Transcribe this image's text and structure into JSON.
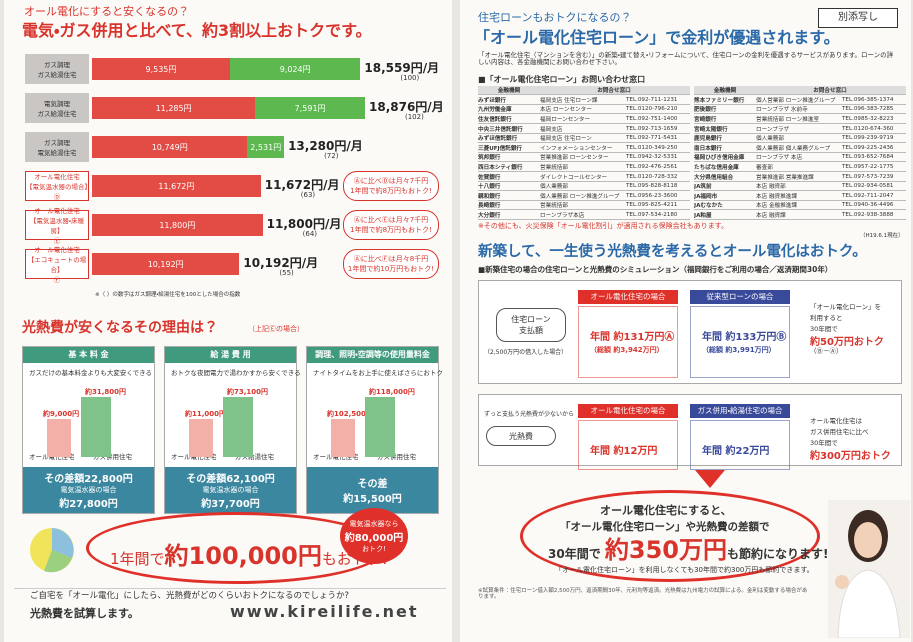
{
  "left": {
    "heading": "オール電化にすると安くなるの？",
    "title": "電気・ガス併用と比べて、約3割以上おトクです。",
    "bars": [
      {
        "label": [
          "ガス調理",
          "ガス給湯住宅"
        ],
        "electric": "9,535円",
        "gas": "9,024円",
        "total": "18,559円/月",
        "index": "(100)"
      },
      {
        "label": [
          "電気調理",
          "ガス給湯住宅"
        ],
        "electric": "11,285円",
        "gas": "7,591円",
        "total": "18,876円/月",
        "index": "(102)"
      },
      {
        "label": [
          "ガス調理",
          "電気給湯住宅"
        ],
        "electric": "10,749円",
        "gas": "2,531円",
        "total": "13,280円/月",
        "index": "(72)"
      },
      {
        "label": [
          "オール電化住宅",
          "【電気温水器の場合】",
          "Ⓓ"
        ],
        "electric": "11,672円",
        "total": "11,672円/月",
        "index": "(63)",
        "callout": [
          "Ⓐに比べⒹは月々7千円",
          "1年間で約8万円もおトク!"
        ]
      },
      {
        "label": [
          "オール電化住宅",
          "【電気温水器・床暖房】",
          "Ⓔ"
        ],
        "electric": "11,800円",
        "total": "11,800円/月",
        "index": "(64)",
        "callout": [
          "Ⓐに比べⒺは月々7千円",
          "1年間で約8万円もおトク!"
        ]
      },
      {
        "label": [
          "オール電化住宅",
          "【エコキュートの場合】",
          "Ⓕ"
        ],
        "electric": "10,192円",
        "total": "10,192円/月",
        "index": "(55)",
        "callout": [
          "Ⓐに比べⒻは月々8千円",
          "1年間で約10万円もおトク!"
        ]
      }
    ],
    "footnote": "※（ ）の数字はガス調理・給湯住宅を100とした場合の指数",
    "reason_title": "光熱費が安くなるその理由は？",
    "reason_note": "（上記Ⓔの場合）",
    "columns": [
      {
        "header": "基 本 料 金",
        "texts": [
          "ガスだけの基本料金よりも大変安くできる",
          "約31,800円",
          "約9,000円",
          "オール電化住宅",
          "ガス併用住宅"
        ],
        "diff": [
          "その差額22,800円",
          "電気温水器の場合",
          "約27,800円"
        ]
      },
      {
        "header": "給 湯 費 用",
        "texts": [
          "おトクな夜間電力で湯わかすから安くできる",
          "約73,100円",
          "約11,000円",
          "オール電化住宅",
          "ガス給湯住宅"
        ],
        "diff": [
          "その差額62,100円",
          "電気温水器の場合",
          "約37,700円"
        ]
      },
      {
        "header": "調理、照明・空調等の使用量料金",
        "texts": [
          "ナイトタイムをお上手に使えばさらにおトク",
          "約118,000円",
          "約102,500円",
          "オール電化住宅",
          "ガス併用住宅"
        ],
        "diff": [
          "その差",
          "約15,500円"
        ]
      }
    ],
    "result": [
      "1年間で",
      "約100,000円",
      "もおトク!"
    ],
    "side_badge": [
      "電気温水器なら",
      "約80,000円",
      "おトク!"
    ],
    "footer": [
      "ご自宅を「オール電化」にしたら、光熱費がどのくらいおトクになるのでしょうか?",
      "光熱費を試算します。",
      "www.kireilife.net"
    ]
  },
  "right": {
    "stamp": "別添写し",
    "heading": "住宅ローンもおトクになるの？",
    "title": "「オール電化住宅ローン」で金利が優遇されます。",
    "paragraph": "「オール電化住宅（マンションを含む）」の新築・建て替え・リフォームについて、住宅ローンの金利を優遇するサービスがあります。ローンの詳しい内容は、各金融機関にお問い合わせ下さい。",
    "table_title": "■「オール電化住宅ローン」お問い合わせ窓口",
    "table": {
      "header": [
        "金融機関",
        "お問合せ窓口"
      ],
      "left": [
        [
          "みずほ銀行",
          "福岡支店 住宅ローン課",
          "TEL.092-711-1231"
        ],
        [
          "九州労働金庫",
          "本店 ローンセンター",
          "TEL.0120-796-210"
        ],
        [
          "住友信託銀行",
          "福岡ローンセンター",
          "TEL.092-751-1400"
        ],
        [
          "中央三井信託銀行",
          "福岡支店",
          "TEL.092-713-1659"
        ],
        [
          "みずほ信託銀行",
          "福岡支店 住宅ローン",
          "TEL.092-771-5431"
        ],
        [
          "三菱UFJ信託銀行",
          "インフォメーションセンター",
          "TEL.0120-349-250"
        ],
        [
          "筑邦銀行",
          "営業推進部 ローンセンター",
          "TEL.0942-32-5331"
        ],
        [
          "西日本シティ銀行",
          "営業統括部",
          "TEL.092-476-2561"
        ],
        [
          "佐賀銀行",
          "ダイレクトコールセンター",
          "TEL.0120-728-332"
        ],
        [
          "十八銀行",
          "個人業務部",
          "TEL.095-828-8118"
        ],
        [
          "親和銀行",
          "個人業務部 ローン推進グループ",
          "TEL.0956-23-3600"
        ],
        [
          "長崎銀行",
          "営業統括部",
          "TEL.095-825-4211"
        ],
        [
          "大分銀行",
          "ローンプラザ本店",
          "TEL.097-534-2180"
        ]
      ],
      "right": [
        [
          "熊本ファミリー銀行",
          "個人営業部 ローン推進グループ",
          "TEL.096-385-1374"
        ],
        [
          "肥後銀行",
          "ローンプラザ 水前寺",
          "TEL.096-383-7285"
        ],
        [
          "宮崎銀行",
          "営業統括部 ローン推進室",
          "TEL.0985-32-8223"
        ],
        [
          "宮崎太陽銀行",
          "ローンプラザ",
          "TEL.0120-674-360"
        ],
        [
          "鹿児島銀行",
          "個人業務部",
          "TEL.099-239-9719"
        ],
        [
          "南日本銀行",
          "個人業務部 個人業務グループ",
          "TEL.099-225-2436"
        ],
        [
          "福岡ひびき信用金庫",
          "ローンプラザ 本店",
          "TEL.093-652-7684"
        ],
        [
          "たちばな信用金庫",
          "審査部",
          "TEL.0957-22-1775"
        ],
        [
          "大分県信用組合",
          "営業推進部 営業推進課",
          "TEL.097-573-7239"
        ],
        [
          "JA筑前",
          "本店 融資部",
          "TEL.092-934-0581"
        ],
        [
          "JA福岡市",
          "本店 融資推進課",
          "TEL.092-711-2047"
        ],
        [
          "JAむなかた",
          "本店 金融推進課",
          "TEL.0940-36-4496"
        ],
        [
          "JA粕屋",
          "本店 融資課",
          "TEL.092-938-3888"
        ]
      ]
    },
    "insurance_note": "※その他にも、火災保険「オール電化割引」が適用される保険会社もあります。",
    "as_of": "（H19.6.1現在）",
    "sim_title": "新築して、一生使う光熱費を考えるとオール電化はおトク。",
    "sim_sub": "■新築住宅の場合の住宅ローンと光熱費のシミュレーション（福岡銀行をご利用の場合／返済期間30年）",
    "loan": {
      "row_label": [
        "住宅ローン",
        "支払額"
      ],
      "row_note": "（2,500万円の借入した場合）",
      "a_head": "オール電化住宅の場合",
      "a_lines": [
        "年間 約131万円Ⓐ",
        "（総額 約3,942万円）"
      ],
      "b_head": "従来型ローンの場合",
      "b_lines": [
        "年間 約133万円Ⓑ",
        "（総額 約3,991万円）"
      ],
      "result": [
        "「オール電化ローン」を",
        "利用すると",
        "30年間で",
        "約50万円おトク",
        "（Ⓑ－Ⓐ）"
      ]
    },
    "energy": {
      "row_label": "光熱費",
      "row_note": "ずっと支払う光熱費が少ないから",
      "a_head": "オール電化住宅の場合",
      "a_lines": [
        "年間 約12万円"
      ],
      "b_head": "ガス併用・給湯住宅の場合",
      "b_lines": [
        "年間 約22万円"
      ],
      "result": [
        "オール電化住宅は",
        "ガス併用住宅に比べ",
        "30年間で",
        "約300万円おトク"
      ]
    },
    "conclusion": [
      "オール電化住宅にすると、",
      "「オール電化住宅ローン」や光熱費の差額で",
      "30年間で",
      "約350万円",
      "も節約になります!",
      "「オール電化住宅ローン」を利用しなくても30年間で約300万円も節約できます。"
    ],
    "notes": "※試算条件：住宅ローン借入額2,500万円、返済期間30年、元利均等返済。光熱費は九州電力の試算による。金利は変動する場合があります。"
  }
}
